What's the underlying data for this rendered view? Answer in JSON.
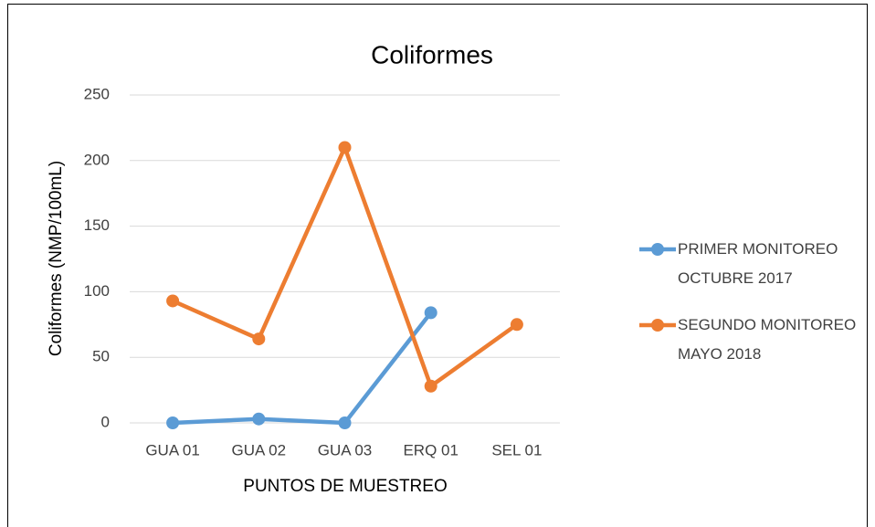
{
  "chart_data": {
    "type": "line",
    "title": "Coliformes",
    "x_label": "PUNTOS DE MUESTREO",
    "y_label": "Coliformes (NMP/100mL)",
    "categories": [
      "GUA 01",
      "GUA 02",
      "GUA 03",
      "ERQ 01",
      "SEL 01"
    ],
    "series": [
      {
        "name": "PRIMER MONITOREO OCTUBRE 2017",
        "color": "#5b9bd5",
        "values": [
          0,
          3,
          0,
          84,
          null
        ]
      },
      {
        "name": "SEGUNDO MONITOREO MAYO 2018",
        "color": "#ed7d31",
        "values": [
          93,
          64,
          210,
          28,
          75
        ]
      }
    ],
    "ylim": [
      0,
      250
    ],
    "yticks": [
      0,
      50,
      100,
      150,
      200,
      250
    ],
    "grid": true,
    "legend": "right"
  }
}
